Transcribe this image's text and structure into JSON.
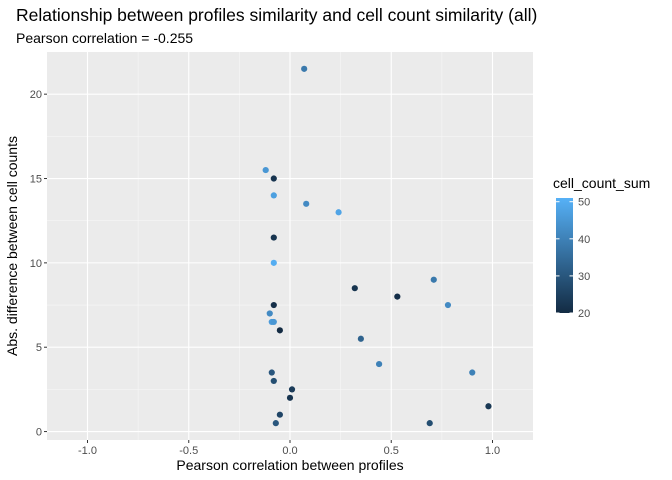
{
  "chart_data": {
    "type": "scatter",
    "title": "Relationship between profiles similarity and cell count similarity (all)",
    "subtitle": "Pearson correlation = -0.255",
    "xlabel": "Pearson correlation between profiles",
    "ylabel": "Abs. difference between cell counts",
    "xlim": [
      -1.2,
      1.2
    ],
    "ylim": [
      -0.5,
      22.5
    ],
    "x_ticks": [
      -1.0,
      -0.5,
      0.0,
      0.5,
      1.0
    ],
    "x_tick_labels": [
      "-1.0",
      "-0.5",
      "0.0",
      "0.5",
      "1.0"
    ],
    "y_ticks": [
      0,
      5,
      10,
      15,
      20
    ],
    "y_tick_labels": [
      "0",
      "5",
      "10",
      "15",
      "20"
    ],
    "grid": true,
    "legend": {
      "title": "cell_count_sum",
      "type": "colorbar",
      "range": [
        20,
        51
      ],
      "ticks": [
        20,
        30,
        40,
        50
      ],
      "tick_labels": [
        "20",
        "30",
        "40",
        "50"
      ],
      "low_color": "#132B43",
      "high_color": "#56B1F7",
      "placement": "right"
    },
    "points": [
      {
        "x": 0.07,
        "y": 21.5,
        "color_value": 38
      },
      {
        "x": -0.12,
        "y": 15.5,
        "color_value": 45
      },
      {
        "x": -0.08,
        "y": 15.0,
        "color_value": 22
      },
      {
        "x": -0.08,
        "y": 14.0,
        "color_value": 47
      },
      {
        "x": 0.08,
        "y": 13.5,
        "color_value": 42
      },
      {
        "x": 0.24,
        "y": 13.0,
        "color_value": 48
      },
      {
        "x": -0.08,
        "y": 11.5,
        "color_value": 22
      },
      {
        "x": -0.08,
        "y": 10.0,
        "color_value": 50
      },
      {
        "x": 0.71,
        "y": 9.0,
        "color_value": 38
      },
      {
        "x": 0.32,
        "y": 8.5,
        "color_value": 22
      },
      {
        "x": 0.53,
        "y": 8.0,
        "color_value": 21
      },
      {
        "x": -0.08,
        "y": 7.5,
        "color_value": 21
      },
      {
        "x": 0.78,
        "y": 7.5,
        "color_value": 42
      },
      {
        "x": -0.1,
        "y": 7.0,
        "color_value": 42
      },
      {
        "x": -0.09,
        "y": 6.5,
        "color_value": 46
      },
      {
        "x": -0.08,
        "y": 6.5,
        "color_value": 45
      },
      {
        "x": -0.05,
        "y": 6.0,
        "color_value": 20
      },
      {
        "x": 0.35,
        "y": 5.5,
        "color_value": 33
      },
      {
        "x": 0.44,
        "y": 4.0,
        "color_value": 40
      },
      {
        "x": -0.09,
        "y": 3.5,
        "color_value": 30
      },
      {
        "x": 0.9,
        "y": 3.5,
        "color_value": 40
      },
      {
        "x": -0.08,
        "y": 3.0,
        "color_value": 28
      },
      {
        "x": 0.01,
        "y": 2.5,
        "color_value": 24
      },
      {
        "x": 0.0,
        "y": 2.0,
        "color_value": 22
      },
      {
        "x": 0.98,
        "y": 1.5,
        "color_value": 23
      },
      {
        "x": -0.05,
        "y": 1.0,
        "color_value": 26
      },
      {
        "x": -0.07,
        "y": 0.5,
        "color_value": 30
      },
      {
        "x": 0.69,
        "y": 0.5,
        "color_value": 28
      }
    ]
  }
}
